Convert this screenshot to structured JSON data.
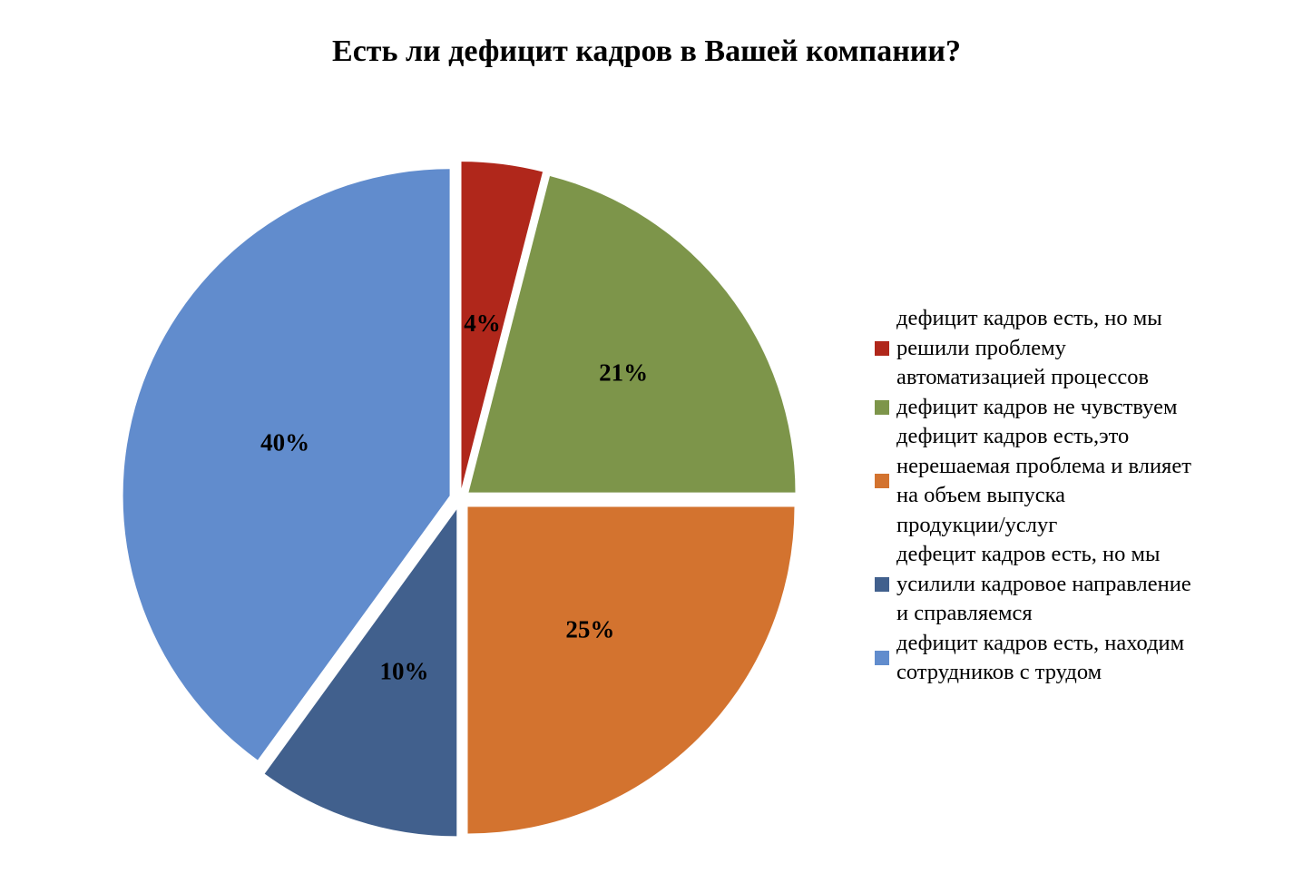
{
  "chart_data": {
    "type": "pie",
    "title": "Есть ли дефицит кадров в Вашей компании?",
    "start_angle_deg": 0,
    "direction": "clockwise",
    "legend_position": "right",
    "slices": [
      {
        "label": "дефицит кадров есть, но мы решили проблему автоматизацией процессов",
        "legend_lines": [
          "дефицит кадров есть, но мы",
          "решили проблему",
          "автоматизацией процессов"
        ],
        "value": 4,
        "display": "4%",
        "color": "#b0271b"
      },
      {
        "label": "дефицит кадров не чувствуем",
        "legend_lines": [
          "дефицит кадров не чувствуем"
        ],
        "value": 21,
        "display": "21%",
        "color": "#7d954a"
      },
      {
        "label": "дефицит кадров есть,это нерешаемая проблема и влияет на объем выпуска продукции/услуг",
        "legend_lines": [
          "дефицит кадров есть,это",
          "нерешаемая проблема и влияет",
          "на объем выпуска",
          "продукции/услуг"
        ],
        "value": 25,
        "display": "25%",
        "color": "#d3732f"
      },
      {
        "label": "дефецит кадров есть, но мы усилили кадровое направление и справляемся",
        "legend_lines": [
          "дефецит кадров есть, но мы",
          "усилили кадровое направление",
          "и справляемся"
        ],
        "value": 10,
        "display": "10%",
        "color": "#41608d"
      },
      {
        "label": "дефицит кадров есть, находим сотрудников с трудом",
        "legend_lines": [
          "дефицит кадров есть, находим",
          "сотрудников с трудом"
        ],
        "value": 40,
        "display": "40%",
        "color": "#618ccd"
      }
    ]
  }
}
